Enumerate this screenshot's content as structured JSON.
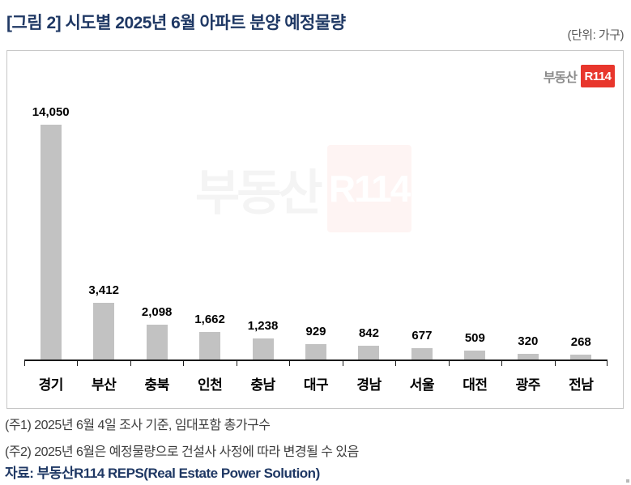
{
  "header": {
    "title": "[그림 2] 시도별 2025년 6월 아파트 분양 예정물량",
    "unit_label": "(단위: 가구)"
  },
  "logo": {
    "prefix": "부동산",
    "badge": "R114"
  },
  "watermark": {
    "prefix": "부동산",
    "badge": "R114"
  },
  "chart_data": {
    "type": "bar",
    "title": "시도별 2025년 6월 아파트 분양 예정물량",
    "unit": "가구",
    "categories": [
      "경기",
      "부산",
      "충북",
      "인천",
      "충남",
      "대구",
      "경남",
      "서울",
      "대전",
      "광주",
      "전남"
    ],
    "values": [
      14050,
      3412,
      2098,
      1662,
      1238,
      929,
      842,
      677,
      509,
      320,
      268
    ],
    "value_labels": [
      "14,050",
      "3,412",
      "2,098",
      "1,662",
      "1,238",
      "929",
      "842",
      "677",
      "509",
      "320",
      "268"
    ],
    "bar_color": "#c2c2c2",
    "axis_color": "#1a1a1a",
    "grid": false,
    "legend": "none",
    "y_axis_visible": false,
    "data_label_position": "outside-end"
  },
  "footer": {
    "note1": "(주1) 2025년 6월 4일 조사 기준, 임대포함 총가구수",
    "note2": "(주2) 2025년 6월은 예정물량으로 건설사 사정에 따라 변경될 수 있음",
    "source": "자료: 부동산R114 REPS(Real Estate Power Solution)"
  },
  "colors": {
    "title_navy": "#1f3864",
    "unit_gray": "#595959",
    "note_gray": "#3d3d3d",
    "logo_red": "#e8362c",
    "logo_gray": "#8c8c8c",
    "border_gray": "#c6c6c6"
  }
}
